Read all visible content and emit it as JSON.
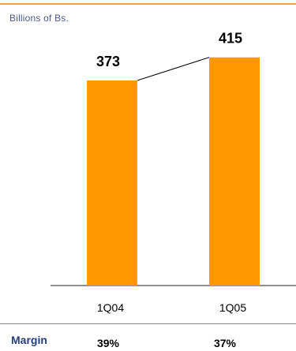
{
  "colors": {
    "bar": "#FF9900",
    "rule": "#F2A33A",
    "accent_text": "#27407A"
  },
  "unit_label": "Billions of Bs.",
  "chart_data": {
    "type": "bar",
    "categories": [
      "1Q04",
      "1Q05"
    ],
    "values": [
      373,
      415
    ],
    "data_labels": [
      "373",
      "415"
    ],
    "connector_line": true,
    "title": "",
    "xlabel": "",
    "ylabel": "Billions of Bs.",
    "ylim": [
      0,
      450
    ],
    "grid": false
  },
  "margin_row": {
    "label": "Margin",
    "values": [
      "39%",
      "37%"
    ]
  }
}
